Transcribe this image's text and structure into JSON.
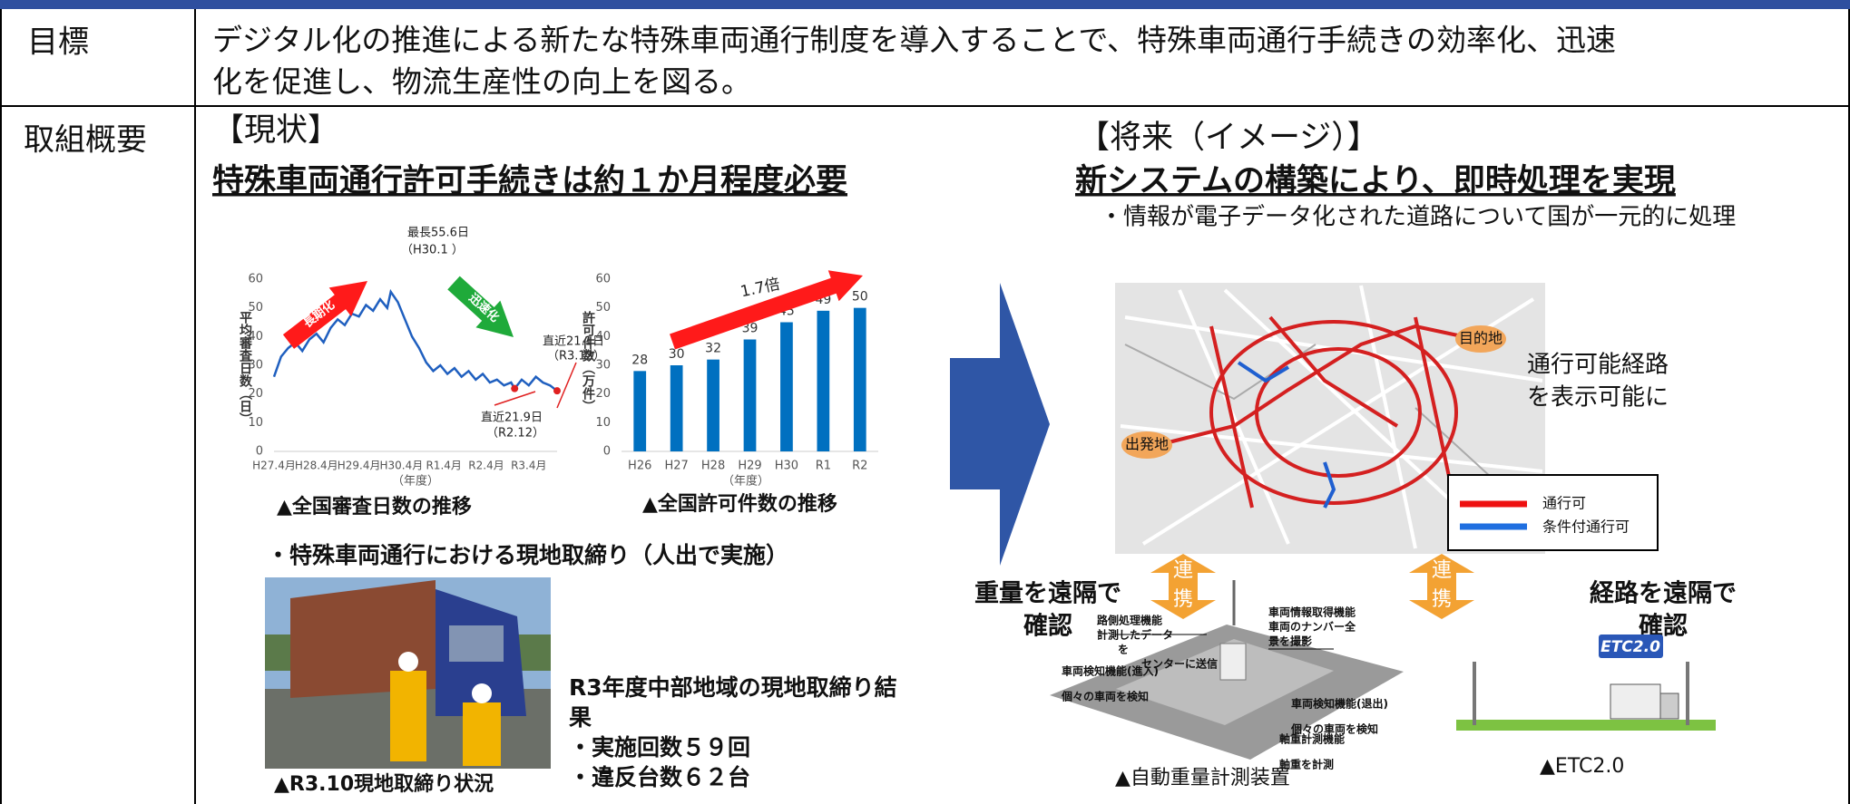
{
  "rows": [
    {
      "label": "目標",
      "lines": [
        "デジタル化の推進による新たな特殊車両通行制度を導入することで、特殊車両通行手続きの効率化、迅速",
        "化を促進し、物流生産性の向上を図る。"
      ]
    },
    {
      "label": "取組概要"
    }
  ],
  "current": {
    "heading": "【現状】",
    "subheading": "特殊車両通行許可手続きは約１か月程度必要",
    "caption_line": "▲全国審査日数の推移",
    "caption_bar": "▲全国許可件数の推移",
    "inspection_title": "・特殊車両通行における現地取締り（人出で実施）",
    "photo_caption": "▲R3.10現地取締り状況",
    "result_lines": [
      "R3年度中部地域の現地取締り結",
      "果",
      "・実施回数５９回",
      "・違反台数６２台"
    ]
  },
  "future": {
    "heading": "【将来（イメージ）】",
    "subheading": "新システムの構築により、即時処理を実現",
    "bullet": "・情報が電子データ化された道路について国が一元的に処理",
    "map_labels": {
      "destination": "目的地",
      "origin": "出発地"
    },
    "legend": [
      "通行可",
      "条件付通行可"
    ],
    "route_note": [
      "通行可能経路",
      "を表示可能に"
    ],
    "link": [
      "連",
      "携"
    ],
    "weight_note": [
      "重量を遠隔で",
      "確認"
    ],
    "route_remote": [
      "経路を遠隔で",
      "確認"
    ],
    "device_labels": [
      [
        "路側処理機能",
        "計測したデータ",
        "を",
        "センターに送信"
      ],
      [
        "車両情報取得機能",
        "車両のナンバー全",
        "景を撮影"
      ],
      [
        "車両検知機能(進入)",
        "個々の車両を検知"
      ],
      [
        "車両検知機能(退出)",
        "個々の車両を検知"
      ],
      [
        "軸重計測機能",
        "軸重を計測"
      ]
    ],
    "device_caption": "▲自動重量計測装置",
    "etc_logo": "ETC2.0",
    "etc_caption": "▲ETC2.0"
  },
  "chart_data": [
    {
      "type": "line",
      "ylabel": "平均審査日数（日）",
      "xlabel": "（年度）",
      "color": "#1f5fbf",
      "x": [
        0,
        2,
        4,
        6,
        8,
        10,
        12,
        14,
        16,
        18,
        20,
        22,
        24,
        26,
        28,
        30,
        32,
        33,
        35,
        37,
        39,
        41,
        43,
        45,
        47,
        49,
        51,
        53,
        55,
        57,
        59,
        61,
        63,
        65,
        67,
        68,
        70,
        72,
        74,
        76,
        78,
        80
      ],
      "values": [
        26,
        33,
        36,
        38,
        35,
        39,
        41,
        38,
        43,
        46,
        44,
        48,
        47,
        51,
        49,
        53,
        50,
        55.6,
        52,
        46,
        40,
        36,
        31,
        28,
        30,
        27,
        29,
        26,
        28,
        25,
        27,
        24,
        25,
        23,
        24,
        21.9,
        25,
        23,
        26,
        24,
        23,
        21.1
      ],
      "xlim": [
        0,
        80
      ],
      "xticks": [
        {
          "value": 0,
          "label": "H27.4月"
        },
        {
          "value": 12,
          "label": "H28.4月"
        },
        {
          "value": 24,
          "label": "H29.4月"
        },
        {
          "value": 36,
          "label": "H30.4月"
        },
        {
          "value": 48,
          "label": "R1.4月"
        },
        {
          "value": 60,
          "label": "R2.4月"
        },
        {
          "value": 72,
          "label": "R3.4月"
        }
      ],
      "ylim": [
        0,
        60
      ],
      "yticks": [
        0,
        10,
        20,
        30,
        40,
        50,
        60
      ],
      "annotations": [
        "最長55.6日",
        "（H30.1 ）",
        "直近21.1日",
        "（R3.12）",
        "直近21.9日",
        "（R2.12）",
        "長期化",
        "迅速化"
      ]
    },
    {
      "type": "bar",
      "ylabel": "許可件数（万件）",
      "xlabel": "（年度）",
      "color": "#0070c0",
      "categories": [
        "H26",
        "H27",
        "H28",
        "H29",
        "H30",
        "R1",
        "R2"
      ],
      "values": [
        28,
        30,
        32,
        39,
        45,
        49,
        50
      ],
      "ylim": [
        0,
        60
      ],
      "yticks": [
        0,
        10,
        20,
        30,
        40,
        50,
        60
      ],
      "annotations": [
        "1.7倍"
      ]
    }
  ]
}
